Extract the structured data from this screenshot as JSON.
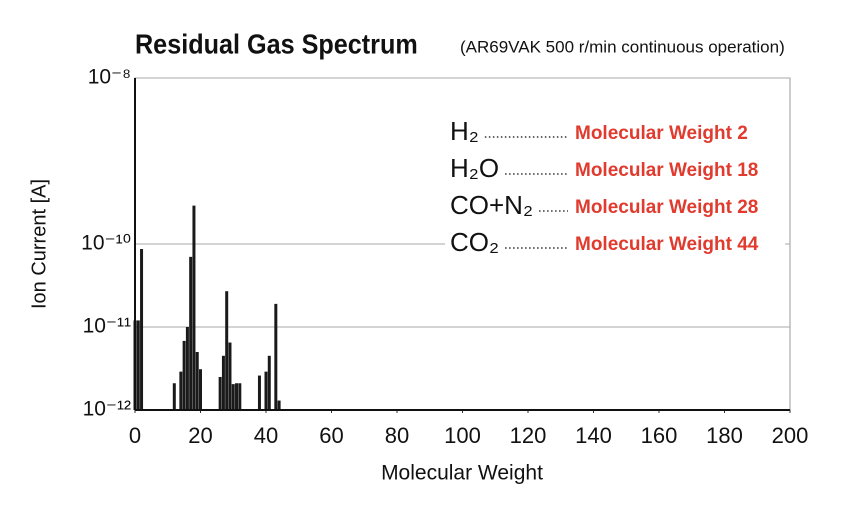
{
  "chart_data": {
    "type": "bar",
    "title": "Residual Gas Spectrum",
    "subtitle": "(AR69VAK 500 r/min continuous operation)",
    "x_label": "Molecular Weight",
    "y_label": "Ion Current [A]",
    "x": [
      0,
      1,
      2,
      12,
      14,
      15,
      16,
      17,
      18,
      19,
      20,
      26,
      27,
      28,
      29,
      30,
      31,
      32,
      38,
      40,
      41,
      43,
      44
    ],
    "values": [
      1.2e-11,
      1.2e-11,
      8.7e-11,
      2.1e-12,
      2.9e-12,
      6.8e-12,
      1e-11,
      7e-11,
      2.9e-10,
      5e-12,
      3.1e-12,
      2.5e-12,
      4.5e-12,
      2.7e-11,
      6.5e-12,
      2.05e-12,
      2.1e-12,
      2.1e-12,
      2.6e-12,
      2.9e-12,
      4.5e-12,
      1.9e-11,
      1.3e-12
    ],
    "color": "#1a1a1a",
    "xlim": [
      0,
      200
    ],
    "xticks": [
      0,
      20,
      40,
      60,
      80,
      100,
      120,
      140,
      160,
      180,
      200
    ],
    "ylim": [
      1e-12,
      1e-08
    ],
    "yticks": [
      {
        "value": 1e-12,
        "label": "10⁻¹²"
      },
      {
        "value": 1e-11,
        "label": "10⁻¹¹"
      },
      {
        "value": 1e-10,
        "label": "10⁻¹⁰"
      },
      {
        "value": 1e-08,
        "label": "10⁻⁸"
      }
    ],
    "log_y": true,
    "grid": true,
    "annotations": [
      {
        "formula": "H₂",
        "label": "Molecular Weight 2"
      },
      {
        "formula": "H₂O",
        "label": "Molecular Weight 18"
      },
      {
        "formula": "CO+N₂",
        "label": "Molecular Weight 28"
      },
      {
        "formula": "CO₂",
        "label": "Molecular Weight 44"
      }
    ]
  }
}
